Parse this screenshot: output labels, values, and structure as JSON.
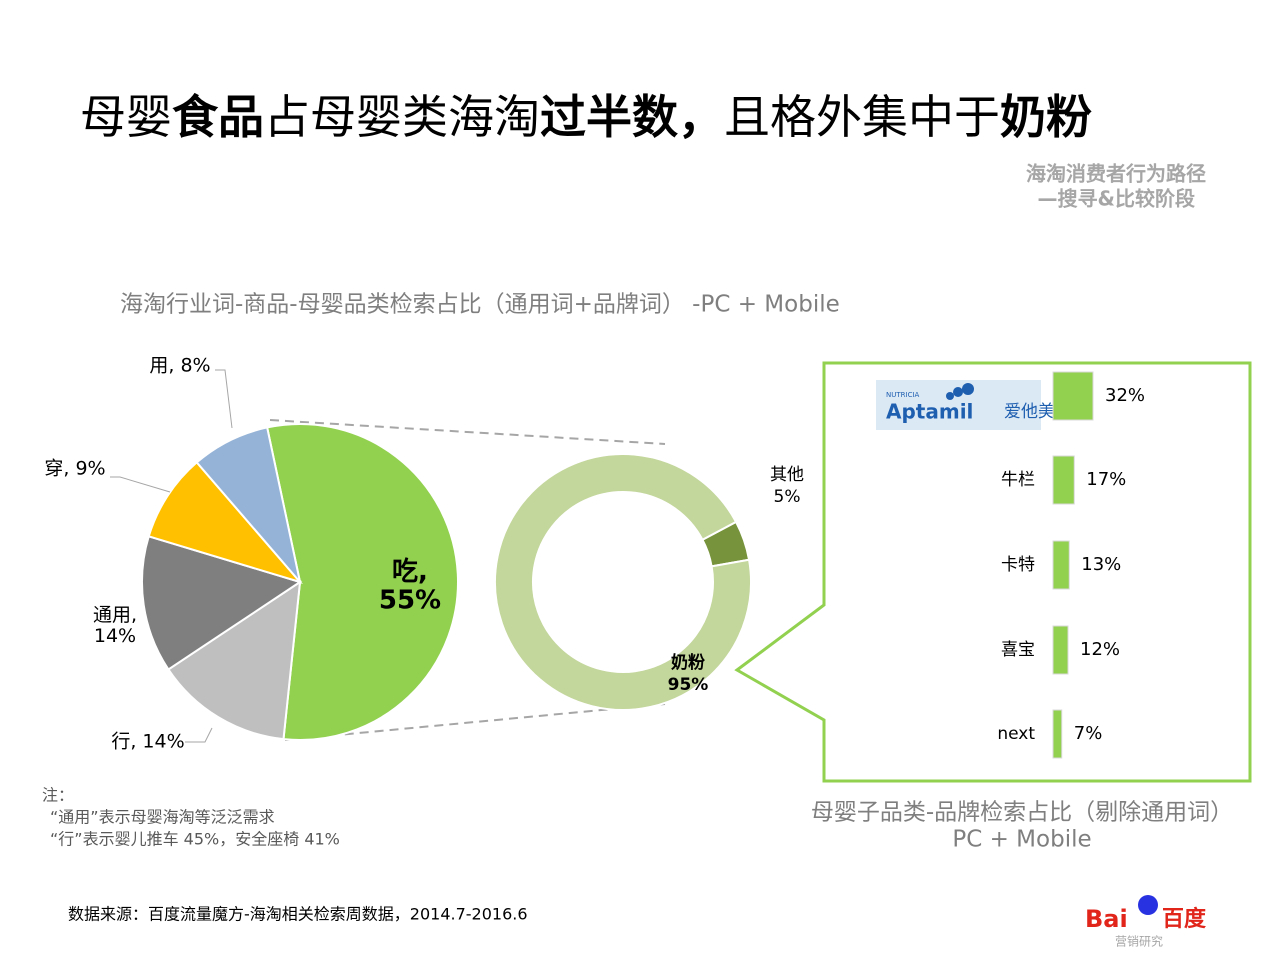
{
  "header": {
    "title": [
      {
        "text": "母婴",
        "bold": false
      },
      {
        "text": "食品",
        "bold": true
      },
      {
        "text": "占母婴类海淘",
        "bold": false
      },
      {
        "text": "过半数，",
        "bold": true
      },
      {
        "text": "且格外集中于",
        "bold": false
      },
      {
        "text": "奶粉",
        "bold": true
      }
    ],
    "subtitle": [
      "海淘消费者行为路径",
      "—搜寻&比较阶段"
    ]
  },
  "chart_data": [
    {
      "type": "pie",
      "title": "海淘行业词-商品-母婴品类检索占比（通用词+品牌词） -PC + Mobile",
      "values": [
        55,
        14,
        14,
        9,
        8
      ],
      "value_labels": [
        "吃, 55%",
        "行, 14%",
        "通用, 14%",
        "穿, 9%",
        "用, 8%"
      ],
      "colors": [
        "#92d050",
        "#bfbfbf",
        "#7f7f7f",
        "#ffc000",
        "#95b3d7"
      ]
    },
    {
      "type": "donut",
      "categories": [
        "其他",
        "奶粉"
      ],
      "values": [
        5,
        95
      ],
      "value_labels": [
        "5%",
        "95%"
      ],
      "colors": [
        "#77933c",
        "#c3d69b"
      ]
    },
    {
      "type": "hbar",
      "title": [
        "母婴子品类-品牌检索占比（剔除通用词）",
        "PC + Mobile"
      ],
      "categories": [
        null,
        "牛栏",
        "卡特",
        "喜宝",
        "next"
      ],
      "values": [
        32,
        17,
        13,
        12,
        7
      ],
      "value_labels": [
        "32%",
        "17%",
        "13%",
        "12%",
        "7%"
      ],
      "color": "#92d050",
      "logo": {
        "maker": "NUTRICIA",
        "name": "Aptamil",
        "name_cn": "爱他美"
      }
    }
  ],
  "notes": [
    "注：",
    "“通用”表示母婴海淘等泛泛需求",
    "“行”表示婴儿推车 45%，安全座椅 41%"
  ],
  "source": "数据来源：百度流量魔方-海淘相关检索周数据，2014.7-2016.6",
  "footer_logo": {
    "latin": "Bai",
    "chinese": "百度",
    "caption": "营销研究"
  }
}
